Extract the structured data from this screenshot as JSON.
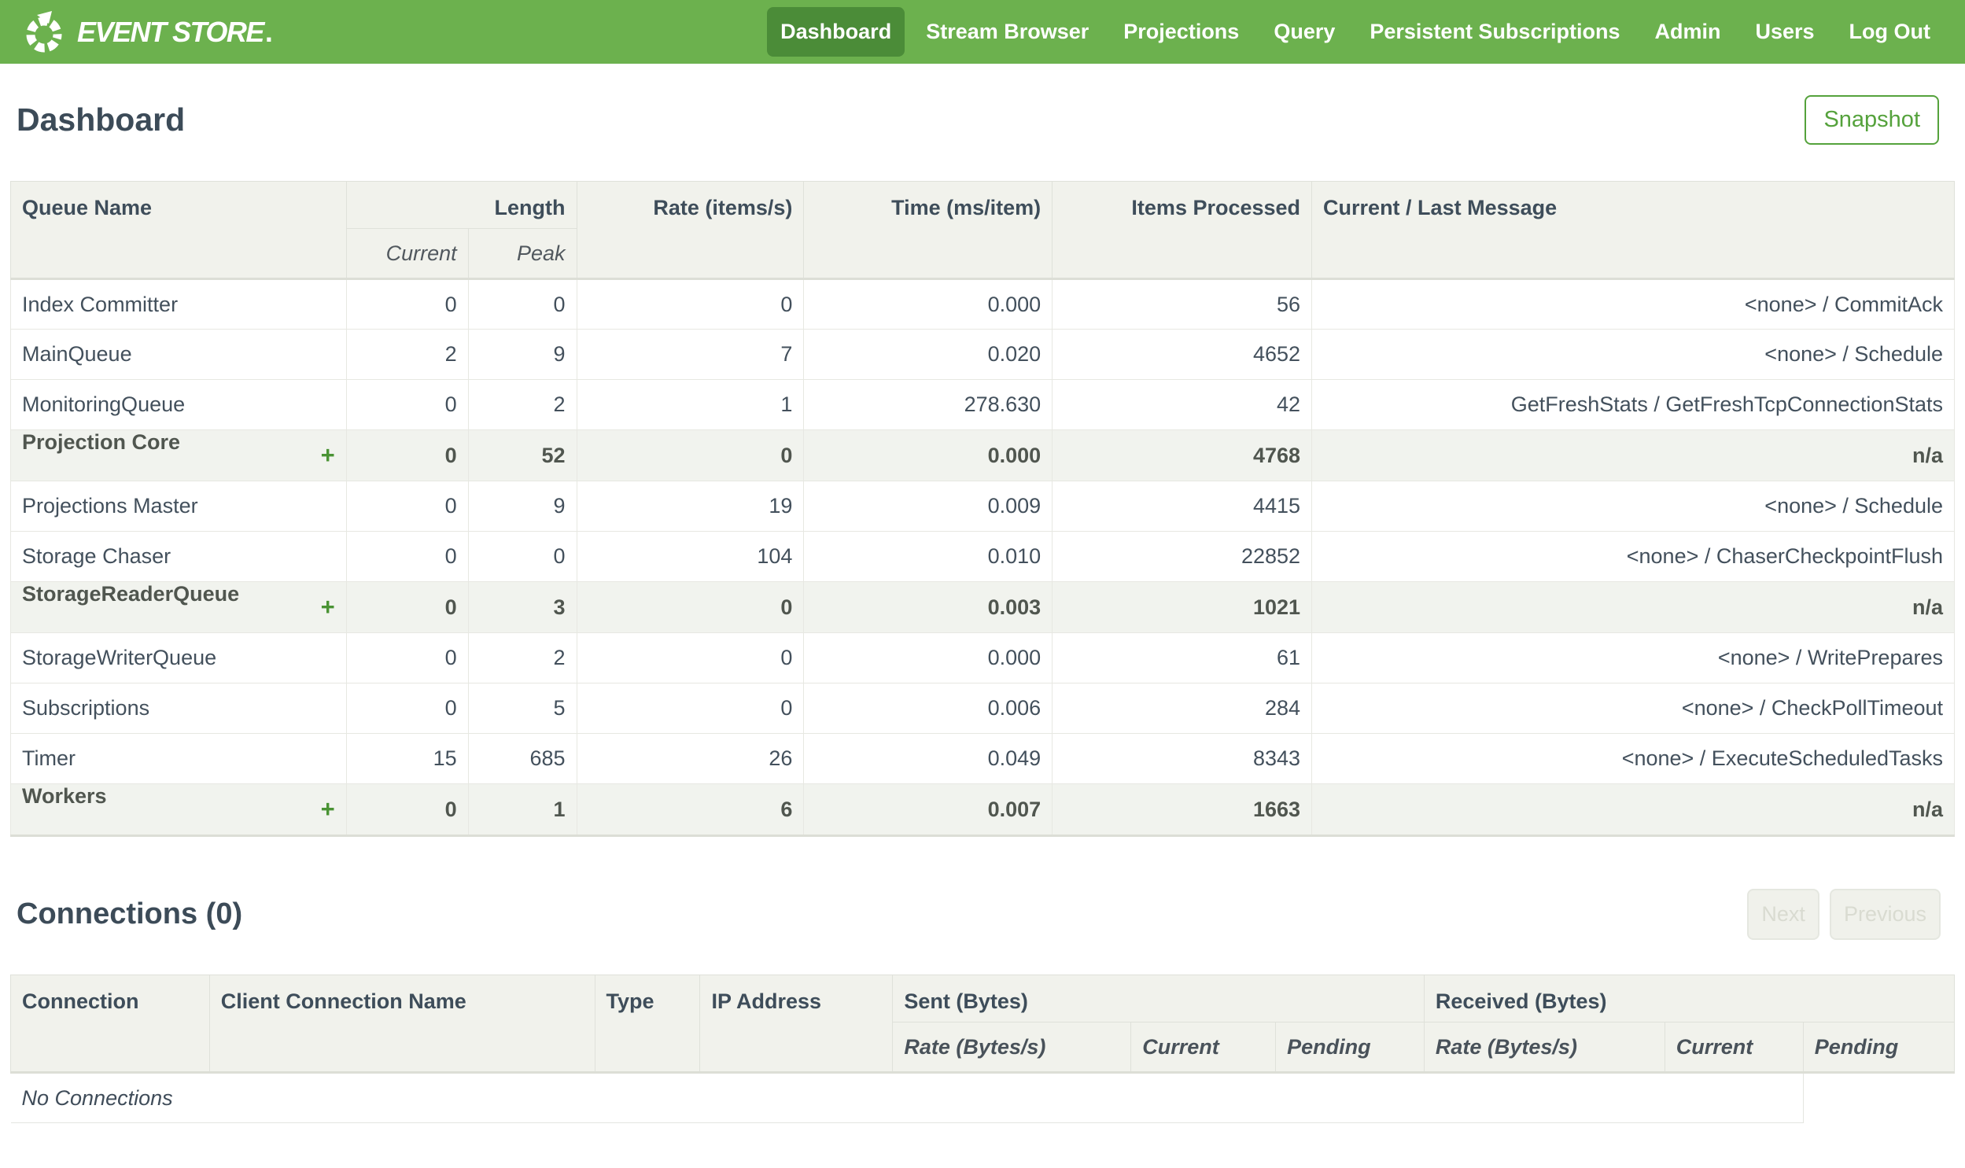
{
  "nav": {
    "brand": "EVENT STORE",
    "brand_mark": ".",
    "items": [
      {
        "label": "Dashboard",
        "active": true
      },
      {
        "label": "Stream Browser",
        "active": false
      },
      {
        "label": "Projections",
        "active": false
      },
      {
        "label": "Query",
        "active": false
      },
      {
        "label": "Persistent Subscriptions",
        "active": false
      },
      {
        "label": "Admin",
        "active": false
      },
      {
        "label": "Users",
        "active": false
      },
      {
        "label": "Log Out",
        "active": false
      }
    ]
  },
  "page": {
    "title": "Dashboard",
    "snapshot_label": "Snapshot"
  },
  "queues": {
    "headers": {
      "queue_name": "Queue Name",
      "length": "Length",
      "current": "Current",
      "peak": "Peak",
      "rate": "Rate (items/s)",
      "time": "Time (ms/item)",
      "items_processed": "Items Processed",
      "message": "Current / Last Message"
    },
    "rows": [
      {
        "name": "Index Committer",
        "group": false,
        "current": "0",
        "peak": "0",
        "rate": "0",
        "time": "0.000",
        "items": "56",
        "message": "<none> / CommitAck"
      },
      {
        "name": "MainQueue",
        "group": false,
        "current": "2",
        "peak": "9",
        "rate": "7",
        "time": "0.020",
        "items": "4652",
        "message": "<none> / Schedule"
      },
      {
        "name": "MonitoringQueue",
        "group": false,
        "current": "0",
        "peak": "2",
        "rate": "1",
        "time": "278.630",
        "items": "42",
        "message": "GetFreshStats / GetFreshTcpConnectionStats"
      },
      {
        "name": "Projection Core",
        "group": true,
        "current": "0",
        "peak": "52",
        "rate": "0",
        "time": "0.000",
        "items": "4768",
        "message": "n/a"
      },
      {
        "name": "Projections Master",
        "group": false,
        "current": "0",
        "peak": "9",
        "rate": "19",
        "time": "0.009",
        "items": "4415",
        "message": "<none> / Schedule"
      },
      {
        "name": "Storage Chaser",
        "group": false,
        "current": "0",
        "peak": "0",
        "rate": "104",
        "time": "0.010",
        "items": "22852",
        "message": "<none> / ChaserCheckpointFlush"
      },
      {
        "name": "StorageReaderQueue",
        "group": true,
        "current": "0",
        "peak": "3",
        "rate": "0",
        "time": "0.003",
        "items": "1021",
        "message": "n/a"
      },
      {
        "name": "StorageWriterQueue",
        "group": false,
        "current": "0",
        "peak": "2",
        "rate": "0",
        "time": "0.000",
        "items": "61",
        "message": "<none> / WritePrepares"
      },
      {
        "name": "Subscriptions",
        "group": false,
        "current": "0",
        "peak": "5",
        "rate": "0",
        "time": "0.006",
        "items": "284",
        "message": "<none> / CheckPollTimeout"
      },
      {
        "name": "Timer",
        "group": false,
        "current": "15",
        "peak": "685",
        "rate": "26",
        "time": "0.049",
        "items": "8343",
        "message": "<none> / ExecuteScheduledTasks"
      },
      {
        "name": "Workers",
        "group": true,
        "current": "0",
        "peak": "1",
        "rate": "6",
        "time": "0.007",
        "items": "1663",
        "message": "n/a"
      }
    ],
    "expand_icon": "+"
  },
  "connections": {
    "title": "Connections (0)",
    "pager": {
      "next": "Next",
      "previous": "Previous"
    },
    "headers": {
      "connection": "Connection",
      "client_connection_name": "Client Connection Name",
      "type": "Type",
      "ip_address": "IP Address",
      "sent": "Sent (Bytes)",
      "received": "Received (Bytes)",
      "rate": "Rate (Bytes/s)",
      "current": "Current",
      "pending": "Pending"
    },
    "empty": "No Connections"
  },
  "colors": {
    "navbar_green": "#6cb14e",
    "active_item_green": "#4b8c38",
    "button_green": "#55a23c",
    "plus_green": "#4a9334",
    "header_bg": "#f1f2ec",
    "group_row_bg": "#f1f3ee",
    "heading_text": "#3c4b58",
    "cell_text": "#43505c",
    "border": "#e3e5de"
  }
}
